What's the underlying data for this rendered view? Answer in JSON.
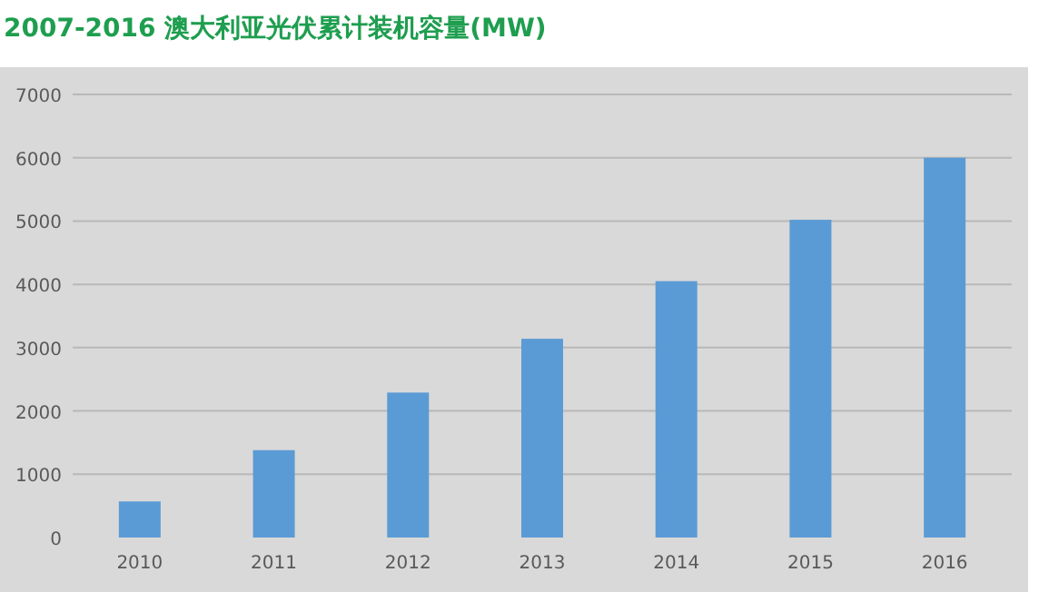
{
  "chart_data": {
    "type": "bar",
    "title": "2007-2016 澳大利亚光伏累计装机容量(MW)",
    "categories": [
      "2010",
      "2011",
      "2012",
      "2013",
      "2014",
      "2015",
      "2016"
    ],
    "values": [
      570,
      1380,
      2290,
      3140,
      4050,
      5020,
      6000
    ],
    "color": "#5b9bd5",
    "ylim": [
      0,
      7000
    ],
    "yticks": [
      0,
      1000,
      2000,
      3000,
      4000,
      5000,
      6000,
      7000
    ],
    "grid": "y"
  }
}
